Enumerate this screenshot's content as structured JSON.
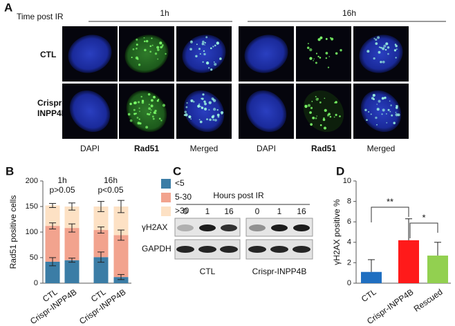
{
  "panel_a": {
    "label": "A",
    "time_label": "Time post  IR",
    "timepoints": [
      "1h",
      "16h"
    ],
    "rows": [
      [
        "CTL"
      ],
      [
        "Crispr-",
        "INPP4B"
      ]
    ],
    "channels": [
      "DAPI",
      "Rad51",
      "Merged",
      "DAPI",
      "Rad51",
      "Merged"
    ]
  },
  "chart_data": [
    {
      "type": "bar",
      "stacked": true,
      "label": "B",
      "ylabel": "Rad51 positive cells",
      "categories": [
        "CTL",
        "Crispr-INPP4B",
        "CTL",
        "Crispr-INPP4B"
      ],
      "groups": [
        {
          "name": "1h",
          "note": "p>0.05"
        },
        {
          "name": "16h",
          "note": "p<0.05"
        }
      ],
      "ylim": [
        0,
        200
      ],
      "yticks": [
        0,
        50,
        100,
        150,
        200
      ],
      "series": [
        {
          "name": "<5",
          "color": "#3b7da6",
          "values": [
            42,
            45,
            51,
            12
          ],
          "errors": [
            8,
            4,
            10,
            5
          ]
        },
        {
          "name": "5-30",
          "color": "#f2a38e",
          "values": [
            70,
            63,
            53,
            82
          ],
          "errors": [
            6,
            8,
            6,
            10
          ]
        },
        {
          "name": ">30",
          "color": "#fde1c4",
          "values": [
            40,
            42,
            46,
            56
          ],
          "errors": [
            4,
            7,
            10,
            12
          ]
        }
      ]
    },
    {
      "type": "bar",
      "stacked": false,
      "label": "D",
      "ylabel": "γH2AX positive %",
      "categories": [
        "CTL",
        "Crispr-INPP4B",
        "Rescued"
      ],
      "values": [
        1.1,
        4.2,
        2.7
      ],
      "errors": [
        1.2,
        2.1,
        1.3
      ],
      "colors": [
        "#1f6fc1",
        "#ff1a1a",
        "#92d050"
      ],
      "ylim": [
        0,
        10
      ],
      "yticks": [
        0,
        2,
        4,
        6,
        8,
        10
      ],
      "significance": [
        "**",
        "*"
      ]
    }
  ],
  "panel_c": {
    "label": "C",
    "title": "Hours post IR",
    "hours": [
      "0",
      "1",
      "16",
      "0",
      "1",
      "16"
    ],
    "proteins": [
      "γH2AX",
      "GAPDH"
    ],
    "groups": [
      "CTL",
      "Crispr-INPP4B"
    ]
  }
}
